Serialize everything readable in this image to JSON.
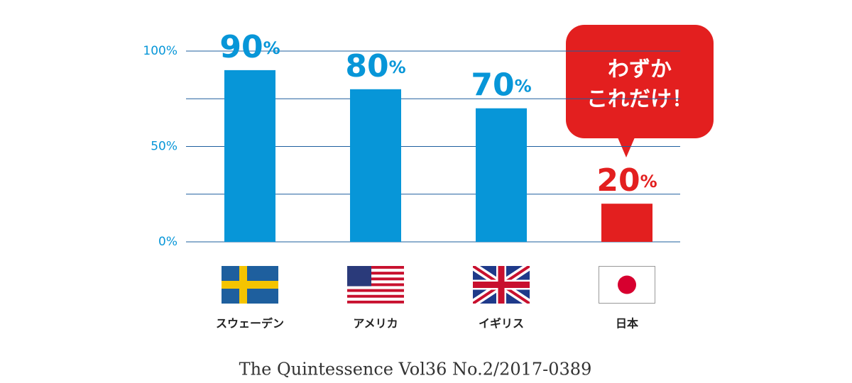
{
  "chart_data": {
    "type": "bar",
    "categories": [
      "スウェーデン",
      "アメリカ",
      "イギリス",
      "日本"
    ],
    "values": [
      90,
      80,
      70,
      20
    ],
    "value_labels": [
      "90%",
      "80%",
      "70%",
      "20%"
    ],
    "colors": [
      "#0796d8",
      "#0796d8",
      "#0796d8",
      "#e31f1f"
    ],
    "ylim": [
      0,
      100
    ],
    "yticks": [
      {
        "value": 0,
        "label": "0%"
      },
      {
        "value": 50,
        "label": "50%"
      },
      {
        "value": 100,
        "label": "100%"
      }
    ],
    "minor_yticks": [
      25,
      75
    ],
    "grid": true,
    "annotation": [
      "わずか",
      "これだけ！"
    ],
    "source": "The Quintessence Vol36 No.2/2017-0389"
  }
}
